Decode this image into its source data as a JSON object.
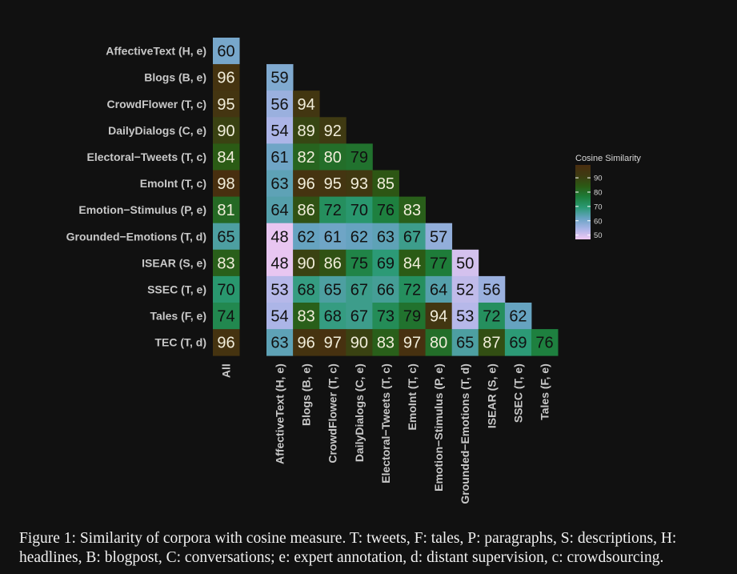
{
  "chart_data": {
    "type": "heatmap",
    "rows": [
      "AffectiveText (H, e)",
      "Blogs (B, e)",
      "CrowdFlower (T, c)",
      "DailyDialogs (C, e)",
      "Electoral−Tweets (T, c)",
      "EmoInt (T, c)",
      "Emotion−Stimulus (P, e)",
      "Grounded−Emotions (T, d)",
      "ISEAR (S, e)",
      "SSEC (T, e)",
      "Tales (F, e)",
      "TEC (T, d)"
    ],
    "all_label": "All",
    "all_values": [
      60,
      96,
      95,
      90,
      84,
      98,
      81,
      65,
      83,
      70,
      74,
      96
    ],
    "columns": [
      "AffectiveText (H, e)",
      "Blogs (B, e)",
      "CrowdFlower (T, c)",
      "DailyDialogs (C, e)",
      "Electoral−Tweets (T, c)",
      "EmoInt (T, c)",
      "Emotion−Stimulus (P, e)",
      "Grounded−Emotions (T, d)",
      "ISEAR (S, e)",
      "SSEC (T, e)",
      "Tales (F, e)"
    ],
    "matrix": [
      [],
      [
        59
      ],
      [
        56,
        94
      ],
      [
        54,
        89,
        92
      ],
      [
        61,
        82,
        80,
        79
      ],
      [
        63,
        96,
        95,
        93,
        85
      ],
      [
        64,
        86,
        72,
        70,
        76,
        83
      ],
      [
        48,
        62,
        61,
        62,
        63,
        67,
        57
      ],
      [
        48,
        90,
        86,
        75,
        69,
        84,
        77,
        50
      ],
      [
        53,
        68,
        65,
        67,
        66,
        72,
        64,
        52,
        56
      ],
      [
        54,
        83,
        68,
        67,
        73,
        79,
        94,
        53,
        72,
        62
      ],
      [
        63,
        96,
        97,
        90,
        83,
        97,
        80,
        65,
        87,
        69,
        76
      ]
    ],
    "legend": {
      "title": "Cosine Similarity",
      "ticks": [
        90,
        80,
        70,
        60,
        50
      ],
      "range": [
        47,
        99
      ],
      "placement": "right"
    },
    "colors": {
      "scale": [
        "#f2c9f3",
        "#a8b4e6",
        "#67a3c2",
        "#2a9a73",
        "#1d7d3a",
        "#2b5a14",
        "#3e3b12",
        "#4a2d0f"
      ],
      "label_text": "#c8c8c8",
      "background": "#111111"
    }
  },
  "caption": "Figure 1: Similarity of corpora with cosine measure. T: tweets, F: tales, P: paragraphs, S: descriptions, H: headlines, B: blogpost, C: conversations; e: expert annotation, d: distant supervision, c: crowdsourcing."
}
